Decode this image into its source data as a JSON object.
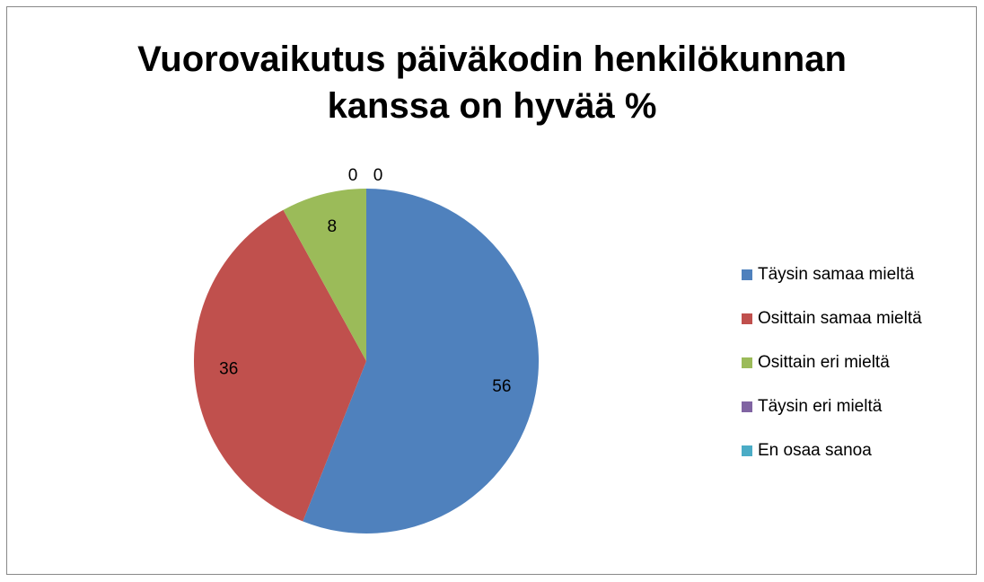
{
  "chart_data": {
    "type": "pie",
    "title": "Vuorovaikutus päiväkodin henkilökunnan kanssa on hyvää %",
    "categories": [
      "Täysin samaa mieltä",
      "Osittain samaa mieltä",
      "Osittain eri mieltä",
      "Täysin eri mieltä",
      "En osaa sanoa"
    ],
    "values": [
      56,
      36,
      8,
      0,
      0
    ],
    "colors": [
      "#4f81bd",
      "#c0504d",
      "#9bbb59",
      "#8064a2",
      "#4bacc6"
    ],
    "legend": "right"
  }
}
